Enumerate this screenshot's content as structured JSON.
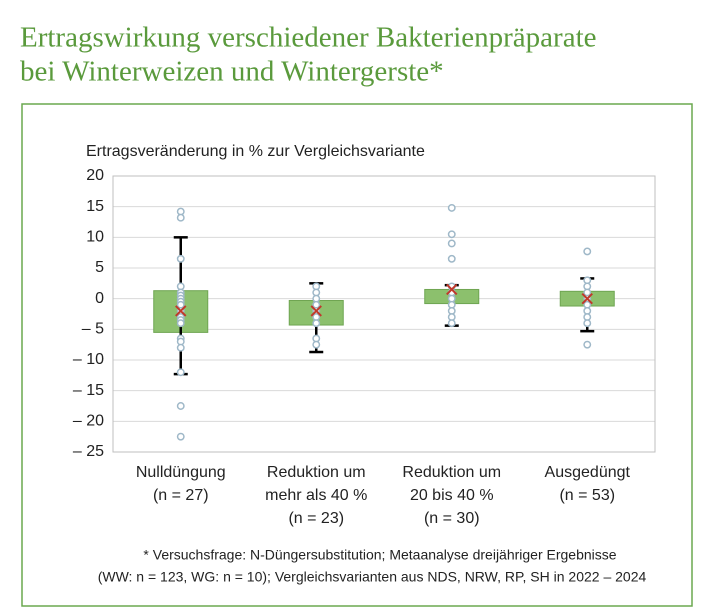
{
  "chart_data": {
    "type": "box",
    "title": [
      "Ertragswirkung verschiedener Bakterienpräparate",
      "bei Winterweizen und Wintergerste*"
    ],
    "y_axis_label": "Ertragsveränderung in % zur Vergleichsvariante",
    "categories": [
      [
        "Nulldüngung",
        "(n = 27)"
      ],
      [
        "Reduktion um",
        "mehr als 40 %",
        "(n = 23)"
      ],
      [
        "Reduktion um",
        "20 bis 40 %",
        "(n = 30)"
      ],
      [
        "Ausgedüngt",
        "(n = 53)"
      ]
    ],
    "boxes": [
      {
        "whisker_low": -12.3,
        "q1": -5.5,
        "q3": 1.3,
        "whisker_high": 10,
        "mean": -2,
        "points": [
          14.2,
          13.2,
          6.5,
          2,
          1,
          0.5,
          0,
          -0.5,
          -1,
          -2,
          -3,
          -3.5,
          -4,
          -6.5,
          -7,
          -8,
          -12,
          -17.5,
          -22.5
        ]
      },
      {
        "whisker_low": -8.7,
        "q1": -4.3,
        "q3": -0.3,
        "whisker_high": 2.5,
        "mean": -2,
        "points": [
          2,
          1,
          0,
          -1,
          -2,
          -3,
          -4,
          -6.5,
          -7.5
        ]
      },
      {
        "whisker_low": -4.4,
        "q1": -0.8,
        "q3": 1.5,
        "whisker_high": 2.2,
        "mean": 1.5,
        "points": [
          14.8,
          10.5,
          9,
          6.5,
          2,
          1,
          0,
          -1,
          -2,
          -3,
          -4
        ]
      },
      {
        "whisker_low": -5.3,
        "q1": -1.2,
        "q3": 1.2,
        "whisker_high": 3.3,
        "mean": 0,
        "points": [
          7.7,
          3,
          2,
          1,
          0,
          -1,
          -2,
          -3,
          -4,
          -7.5
        ]
      }
    ],
    "box_color": "#8cc06d",
    "mean_color": "#c0392b",
    "point_color": "#9fb8c8",
    "ylim": [
      -25,
      20
    ],
    "yticks": [
      20,
      15,
      10,
      5,
      0,
      {
        "value": -5,
        "label": "– 5"
      },
      {
        "value": -10,
        "label": "– 10"
      },
      {
        "value": -15,
        "label": "– 15"
      },
      {
        "value": -20,
        "label": "– 20"
      },
      {
        "value": -25,
        "label": "– 25"
      }
    ],
    "grid": true,
    "footnote": [
      "* Versuchsfrage: N-Düngersubstitution; Metaanalyse dreijähriger Ergebnisse",
      "(WW: n = 123, WG: n = 10); Vergleichsvarianten aus NDS, NRW, RP, SH in 2022 – 2024"
    ]
  }
}
